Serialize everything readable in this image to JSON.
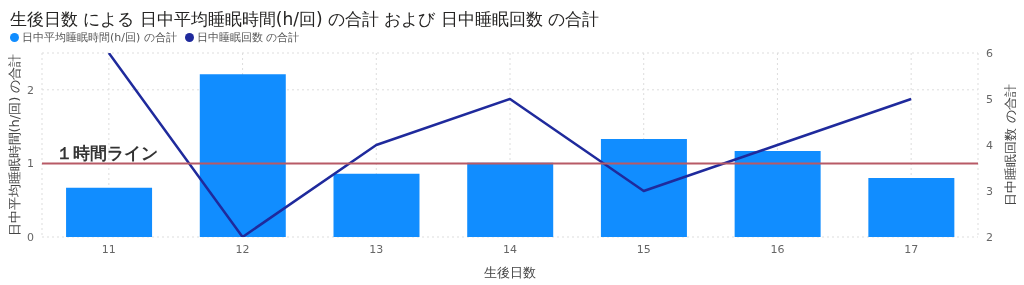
{
  "chart_data": {
    "type": "bar",
    "title": "生後日数 による 日中平均睡眠時間(h/回) の合計 および 日中睡眠回数 の合計",
    "xlabel": "生後日数",
    "ylabel": "日中平均睡眠時間(h/回) の合計",
    "y2label": "日中睡眠回数 の合計",
    "categories": [
      "11",
      "12",
      "13",
      "14",
      "15",
      "16",
      "17"
    ],
    "series": [
      {
        "name": "日中平均睡眠時間(h/回) の合計",
        "color": "#118dff",
        "values": [
          0.67,
          2.21,
          0.86,
          1.01,
          1.33,
          1.17,
          0.8
        ]
      },
      {
        "name": "日中睡眠回数 の合計",
        "type": "line",
        "axis": "y2",
        "color": "#1f2a9c",
        "values": [
          6,
          2,
          4,
          5,
          3,
          4,
          5
        ]
      }
    ],
    "ylim": [
      0,
      2.5
    ],
    "yticks": [
      0,
      1,
      2
    ],
    "y2lim": [
      2,
      6
    ],
    "y2ticks": [
      2,
      3,
      4,
      5,
      6
    ],
    "ref_lines": [
      {
        "axis": "y",
        "value": 1,
        "label": "１時間ライン",
        "color": "#b85a66"
      }
    ],
    "grid": true,
    "legend": "top left",
    "marker": "none"
  }
}
